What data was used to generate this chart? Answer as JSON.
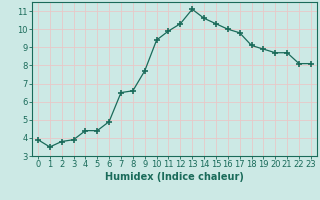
{
  "x": [
    0,
    1,
    2,
    3,
    4,
    5,
    6,
    7,
    8,
    9,
    10,
    11,
    12,
    13,
    14,
    15,
    16,
    17,
    18,
    19,
    20,
    21,
    22,
    23
  ],
  "y": [
    3.9,
    3.5,
    3.8,
    3.9,
    4.4,
    4.4,
    4.9,
    6.5,
    6.6,
    7.7,
    9.4,
    9.9,
    10.3,
    11.1,
    10.6,
    10.3,
    10.0,
    9.8,
    9.1,
    8.9,
    8.7,
    8.7,
    8.1,
    8.1
  ],
  "line_color": "#1a6b5a",
  "marker": "+",
  "marker_size": 4,
  "marker_lw": 1.2,
  "bg_color": "#cce9e5",
  "grid_color": "#e8c8c8",
  "xlabel": "Humidex (Indice chaleur)",
  "xlim": [
    -0.5,
    23.5
  ],
  "ylim": [
    3,
    11.5
  ],
  "yticks": [
    3,
    4,
    5,
    6,
    7,
    8,
    9,
    10,
    11
  ],
  "xticks": [
    0,
    1,
    2,
    3,
    4,
    5,
    6,
    7,
    8,
    9,
    10,
    11,
    12,
    13,
    14,
    15,
    16,
    17,
    18,
    19,
    20,
    21,
    22,
    23
  ],
  "xtick_labels": [
    "0",
    "1",
    "2",
    "3",
    "4",
    "5",
    "6",
    "7",
    "8",
    "9",
    "10",
    "11",
    "12",
    "13",
    "14",
    "15",
    "16",
    "17",
    "18",
    "19",
    "20",
    "21",
    "22",
    "23"
  ],
  "tick_color": "#1a6b5a",
  "label_fontsize": 7,
  "tick_fontsize": 6,
  "line_width": 0.9
}
